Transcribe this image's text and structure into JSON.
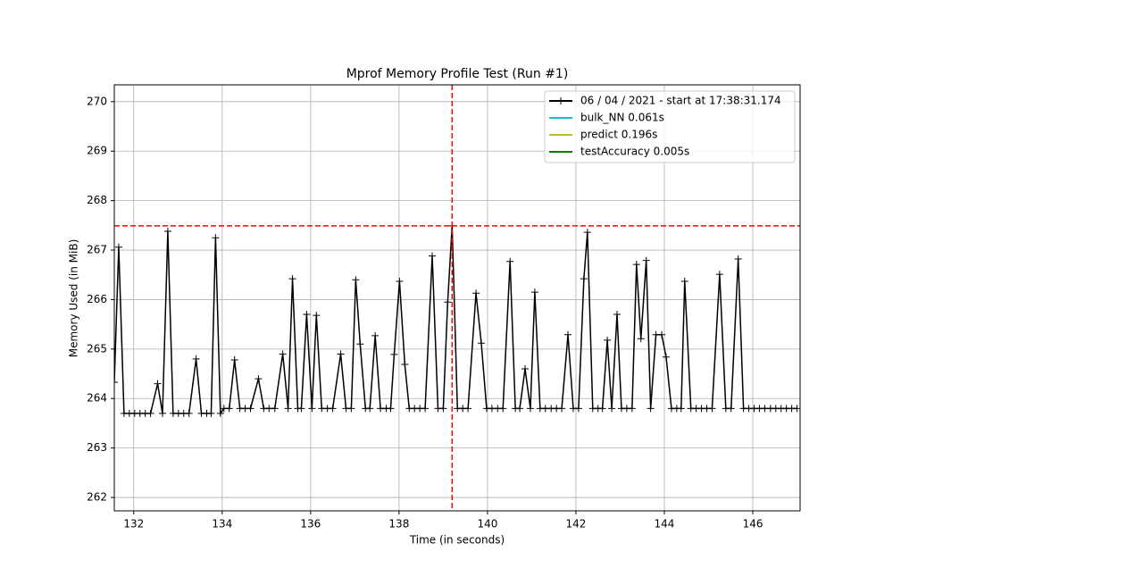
{
  "chart_data": {
    "type": "line",
    "title": "Mprof Memory Profile Test (Run #1)",
    "xlabel": "Time (in seconds)",
    "ylabel": "Memory Used (in MiB)",
    "x": [
      131.56,
      131.66,
      131.78,
      131.9,
      132.02,
      132.14,
      132.26,
      132.38,
      132.54,
      132.65,
      132.77,
      132.89,
      133.01,
      133.13,
      133.25,
      133.41,
      133.53,
      133.65,
      133.75,
      133.85,
      133.96,
      134.04,
      134.16,
      134.28,
      134.4,
      134.52,
      134.64,
      134.82,
      134.94,
      135.06,
      135.19,
      135.37,
      135.49,
      135.59,
      135.71,
      135.79,
      135.91,
      136.03,
      136.13,
      136.25,
      136.38,
      136.5,
      136.68,
      136.8,
      136.92,
      137.02,
      137.12,
      137.24,
      137.34,
      137.46,
      137.58,
      137.71,
      137.81,
      137.89,
      138.01,
      138.13,
      138.23,
      138.35,
      138.47,
      138.59,
      138.75,
      138.88,
      139.0,
      139.1,
      139.2,
      139.32,
      139.44,
      139.56,
      139.74,
      139.86,
      139.98,
      140.1,
      140.23,
      140.35,
      140.51,
      140.63,
      140.73,
      140.85,
      140.97,
      141.07,
      141.19,
      141.31,
      141.44,
      141.56,
      141.68,
      141.82,
      141.94,
      142.06,
      142.18,
      142.26,
      142.38,
      142.5,
      142.6,
      142.71,
      142.81,
      142.93,
      143.03,
      143.15,
      143.27,
      143.37,
      143.47,
      143.59,
      143.69,
      143.81,
      143.94,
      144.04,
      144.16,
      144.28,
      144.38,
      144.46,
      144.6,
      144.72,
      144.84,
      144.96,
      145.08,
      145.25,
      145.39,
      145.51,
      145.67,
      145.79,
      145.91,
      146.03,
      146.15,
      146.27,
      146.4,
      146.52,
      146.64,
      146.76,
      146.88,
      147.0
    ],
    "series": [
      {
        "name": "06 / 04 / 2021 - start at 17:38:31.174",
        "color": "#000000",
        "marker": "+",
        "values": [
          264.33,
          267.06,
          263.7,
          263.7,
          263.7,
          263.7,
          263.7,
          263.7,
          264.3,
          263.7,
          267.38,
          263.7,
          263.7,
          263.7,
          263.7,
          264.8,
          263.7,
          263.7,
          263.7,
          267.25,
          263.7,
          263.8,
          263.8,
          264.78,
          263.8,
          263.8,
          263.8,
          264.4,
          263.8,
          263.8,
          263.8,
          264.9,
          263.8,
          266.42,
          263.8,
          263.8,
          265.7,
          263.8,
          265.68,
          263.8,
          263.8,
          263.8,
          264.9,
          263.8,
          263.8,
          266.4,
          265.1,
          263.8,
          263.8,
          265.27,
          263.8,
          263.8,
          263.8,
          264.89,
          266.37,
          264.69,
          263.8,
          263.8,
          263.8,
          263.8,
          266.88,
          263.8,
          263.8,
          265.95,
          267.49,
          263.8,
          263.8,
          263.8,
          266.13,
          265.12,
          263.8,
          263.8,
          263.8,
          263.8,
          266.77,
          263.8,
          263.8,
          264.6,
          263.8,
          266.15,
          263.8,
          263.8,
          263.8,
          263.8,
          263.8,
          265.29,
          263.8,
          263.8,
          266.42,
          267.36,
          263.8,
          263.8,
          263.8,
          265.18,
          263.8,
          265.7,
          263.8,
          263.8,
          263.8,
          266.71,
          265.21,
          266.79,
          263.8,
          265.29,
          265.29,
          264.84,
          263.8,
          263.8,
          263.8,
          266.37,
          263.8,
          263.8,
          263.8,
          263.8,
          263.8,
          266.51,
          263.8,
          263.8,
          266.82,
          263.8,
          263.8,
          263.8,
          263.8,
          263.8,
          263.8,
          263.8,
          263.8,
          263.8,
          263.8,
          263.8
        ]
      },
      {
        "name": "bulk_NN 0.061s",
        "color": "#17becf"
      },
      {
        "name": "predict 0.196s",
        "color": "#bcbd22"
      },
      {
        "name": "testAccuracy 0.005s",
        "color": "#008000"
      }
    ],
    "hlines": [
      {
        "value": 267.49,
        "color": "#ff0000"
      }
    ],
    "vlines": [
      {
        "value": 139.2,
        "color": "#ff0000"
      }
    ],
    "xlim": [
      131.56,
      147.07
    ],
    "ylim": [
      261.73,
      270.34
    ],
    "xticks": [
      132,
      134,
      136,
      138,
      140,
      142,
      144,
      146
    ],
    "yticks": [
      262,
      263,
      264,
      265,
      266,
      267,
      268,
      269,
      270
    ],
    "grid": true,
    "legend": "upper right"
  }
}
